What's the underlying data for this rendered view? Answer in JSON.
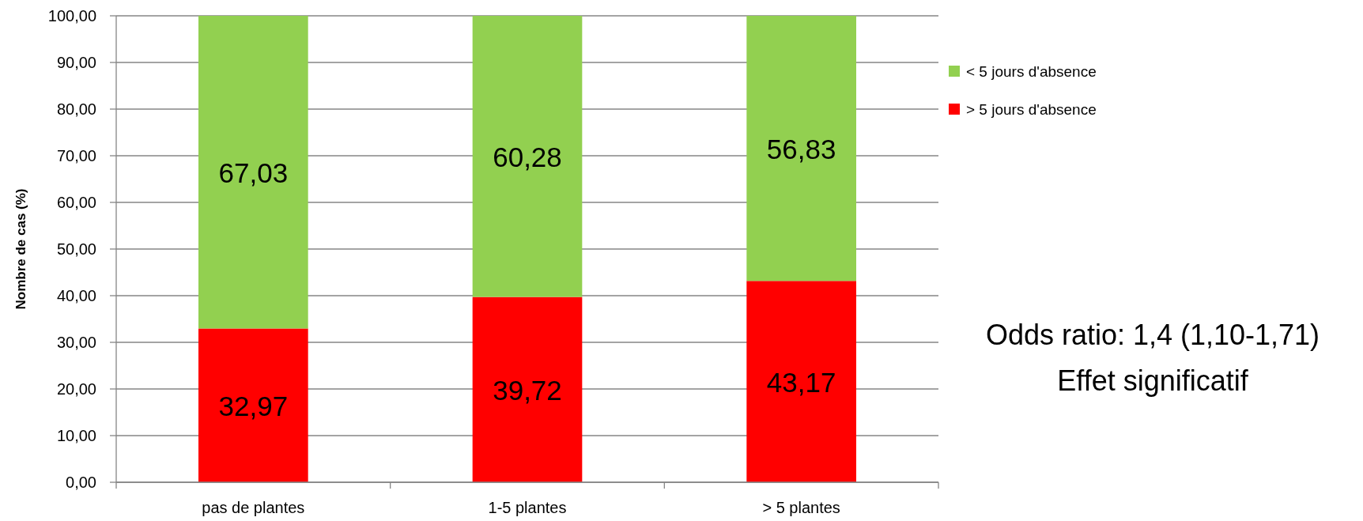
{
  "chart_data": {
    "type": "bar",
    "stacked": true,
    "categories": [
      "pas de plantes",
      "1-5 plantes",
      "> 5 plantes"
    ],
    "ylabel": "Nombre de cas (%)",
    "series": [
      {
        "name": "> 5 jours d'absence",
        "color": "#ff0000",
        "values": [
          32.97,
          39.72,
          43.17
        ],
        "value_labels": [
          "32,97",
          "39,72",
          "43,17"
        ]
      },
      {
        "name": "< 5 jours d'absence",
        "color": "#92d050",
        "values": [
          67.03,
          60.28,
          56.83
        ],
        "value_labels": [
          "67,03",
          "60,28",
          "56,83"
        ]
      }
    ],
    "ylim": [
      0,
      100
    ],
    "yticks": [
      {
        "value": 0,
        "label": "0,00"
      },
      {
        "value": 10,
        "label": "10,00"
      },
      {
        "value": 20,
        "label": "20,00"
      },
      {
        "value": 30,
        "label": "30,00"
      },
      {
        "value": 40,
        "label": "40,00"
      },
      {
        "value": 50,
        "label": "50,00"
      },
      {
        "value": 60,
        "label": "60,00"
      },
      {
        "value": 70,
        "label": "70,00"
      },
      {
        "value": 80,
        "label": "80,00"
      },
      {
        "value": 90,
        "label": "90,00"
      },
      {
        "value": 100,
        "label": "100,00"
      }
    ],
    "grid": "y",
    "legend": "top right",
    "annotations": [
      "Odds ratio: 1,4 (1,10-1,71)",
      "Effet significatif"
    ]
  }
}
